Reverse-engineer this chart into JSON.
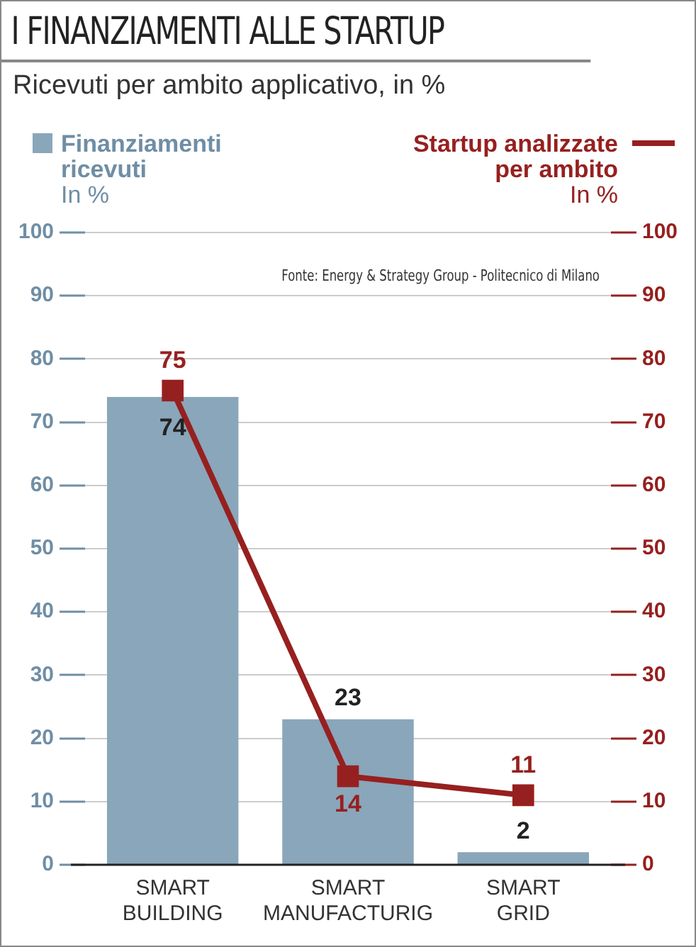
{
  "chart_data": {
    "type": "bar",
    "title": "I FINANZIAMENTI ALLE STARTUP",
    "subtitle": "Ricevuti per ambito applicativo, in %",
    "ylabel": "In %",
    "y2label": "In %",
    "categories": [
      "SMART BUILDING",
      "SMART MANUFACTURIG",
      "SMART GRID"
    ],
    "series": [
      {
        "name": "Finanziamenti ricevuti",
        "color": "#8aa6ba",
        "values": [
          74,
          23,
          2
        ]
      },
      {
        "name": "Startup analizzate per ambito",
        "type": "line",
        "axis": "y2",
        "color": "#96201f",
        "values": [
          75,
          14,
          11
        ],
        "marker": "square"
      }
    ],
    "ylim": [
      0,
      100
    ],
    "yticks": [
      0,
      10,
      20,
      30,
      40,
      50,
      60,
      70,
      80,
      90,
      100
    ],
    "y2lim": [
      0,
      100
    ],
    "y2ticks": [
      0,
      10,
      20,
      30,
      40,
      50,
      60,
      70,
      80,
      90,
      100
    ],
    "grid": "y",
    "legend": "top",
    "data_labels": true,
    "annotations": [
      "Fonte: Energy & Strategy Group - Politecnico di Milano"
    ]
  }
}
